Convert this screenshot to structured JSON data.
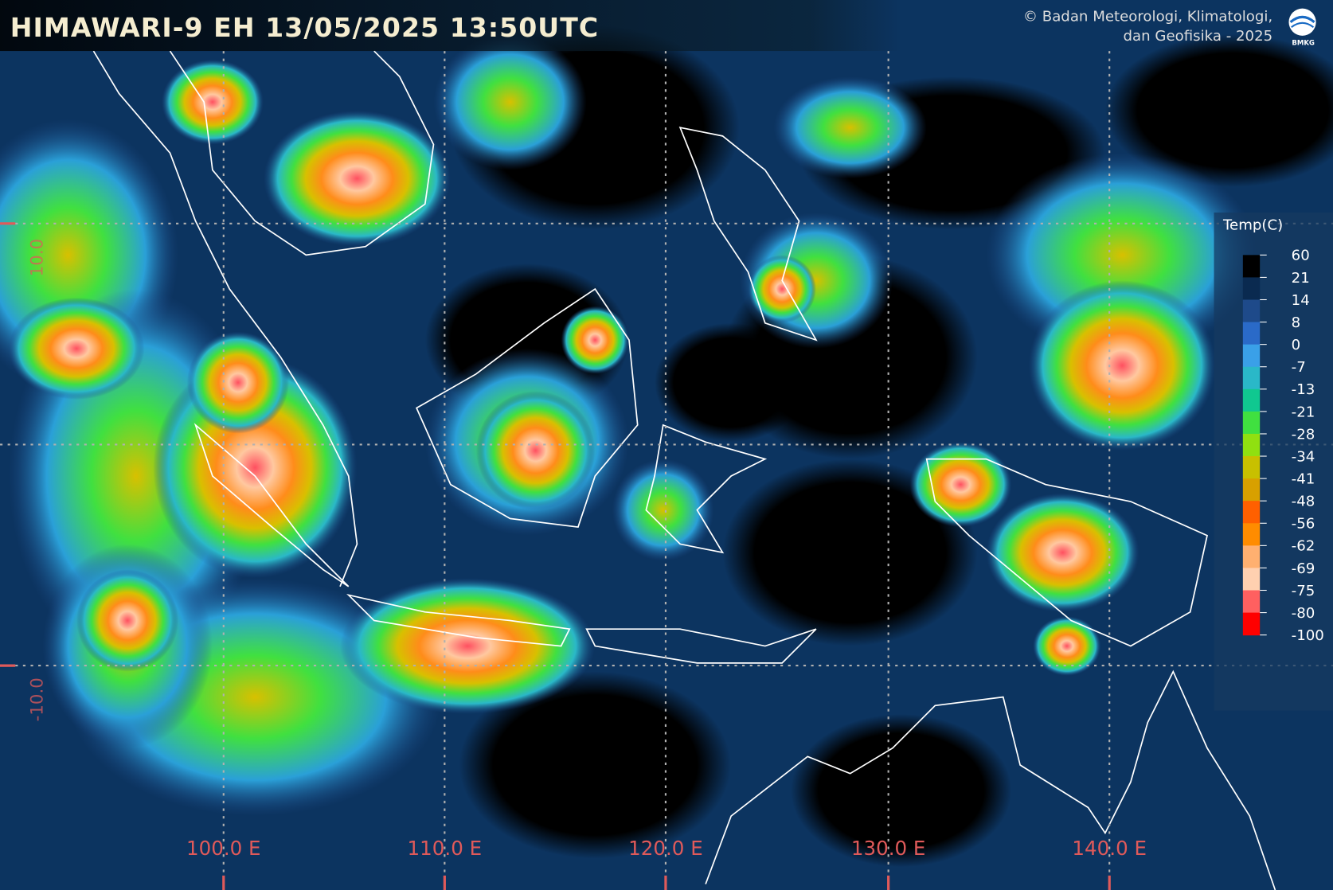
{
  "header": {
    "title": "HIMAWARI-9 EH 13/05/2025 13:50UTC",
    "credit_line1": "© Badan Meteorologi, Klimatologi,",
    "credit_line2": "dan Geofisika -  2025",
    "logo_text": "BMKG"
  },
  "legend": {
    "title": "Temp(C)",
    "labels": [
      60,
      21,
      14,
      8,
      0,
      -7,
      -13,
      -21,
      -28,
      -34,
      -41,
      -48,
      -56,
      -62,
      -69,
      -75,
      -80,
      -100
    ]
  },
  "map": {
    "lon_labels": [
      "100.0 E",
      "110.0 E",
      "120.0 E",
      "130.0 E",
      "140.0 E"
    ],
    "lat_labels": [
      "10.0",
      "-10.0"
    ]
  }
}
